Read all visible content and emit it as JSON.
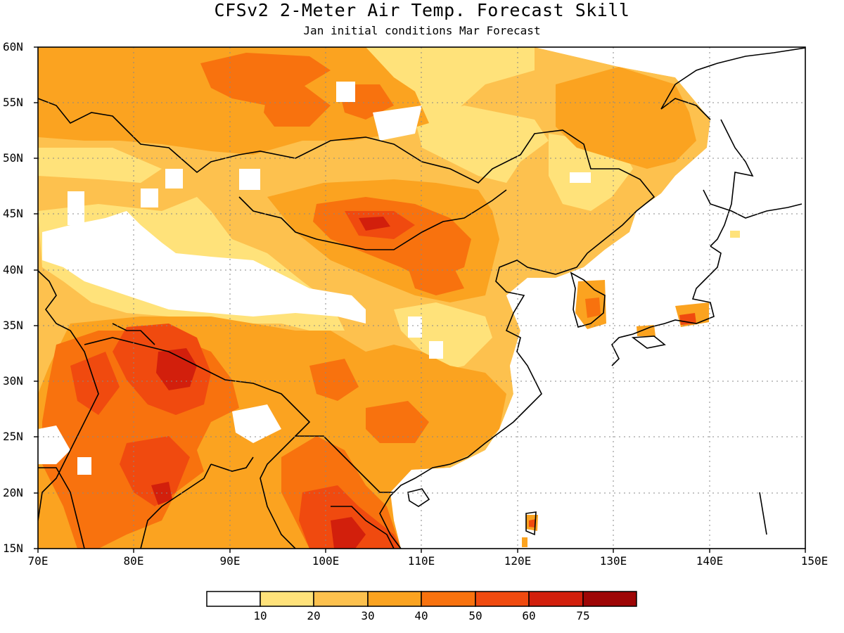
{
  "header": {
    "title": "CFSv2 2-Meter Air Temp. Forecast Skill",
    "subtitle": "Jan initial conditions  Mar Forecast"
  },
  "map": {
    "projection": "cylindrical equidistant",
    "lon_range": [
      70,
      150
    ],
    "lat_range": [
      15,
      60
    ],
    "lat_labels": [
      "60N",
      "55N",
      "50N",
      "45N",
      "40N",
      "35N",
      "30N",
      "25N",
      "20N",
      "15N"
    ],
    "lon_labels": [
      "70E",
      "80E",
      "90E",
      "100E",
      "110E",
      "120E",
      "130E",
      "140E",
      "150E"
    ],
    "gridlines": "dotted, every 10° lon and 5° lat",
    "coastline_color": "#000000"
  },
  "colorbar": {
    "bins": [
      {
        "color": "#ffffff"
      },
      {
        "color": "#ffe27a"
      },
      {
        "color": "#fdc14e"
      },
      {
        "color": "#fba320"
      },
      {
        "color": "#f8720e"
      },
      {
        "color": "#f04a0f"
      },
      {
        "color": "#d21f0c"
      },
      {
        "color": "#9e0606"
      }
    ],
    "labels": [
      "10",
      "20",
      "30",
      "40",
      "50",
      "60",
      "75"
    ]
  },
  "chart_data": {
    "type": "heatmap",
    "title": "CFSv2 2-Meter Air Temp. Forecast Skill",
    "subtitle": "Jan initial conditions  Mar Forecast",
    "xlabel": "",
    "ylabel": "",
    "xlim": [
      70,
      150
    ],
    "ylim": [
      15,
      60
    ],
    "contour_levels": [
      10,
      20,
      30,
      40,
      50,
      60,
      75
    ],
    "regions": [
      {
        "lon": [
          70,
          110
        ],
        "lat": [
          52,
          60
        ],
        "level_range": [
          30,
          40
        ]
      },
      {
        "lon": [
          88,
          100
        ],
        "lat": [
          53,
          58
        ],
        "level_range": [
          40,
          50
        ]
      },
      {
        "lon": [
          98,
          110
        ],
        "lat": [
          42,
          46
        ],
        "level_range": [
          40,
          50
        ]
      },
      {
        "lon": [
          72,
          95
        ],
        "lat": [
          37,
          44
        ],
        "level_range": [
          0,
          10
        ]
      },
      {
        "lon": [
          115,
          135
        ],
        "lat": [
          47,
          56
        ],
        "level_range": [
          20,
          30
        ]
      },
      {
        "lon": [
          78,
          92
        ],
        "lat": [
          26,
          34
        ],
        "level_range": [
          50,
          60
        ]
      },
      {
        "lon": [
          84,
          86
        ],
        "lat": [
          30,
          33
        ],
        "level_range": [
          60,
          75
        ]
      },
      {
        "lon": [
          100,
          106
        ],
        "lat": [
          15,
          20
        ],
        "level_range": [
          50,
          60
        ]
      },
      {
        "lon": [
          105,
          120
        ],
        "lat": [
          22,
          34
        ],
        "level_range": [
          30,
          40
        ]
      }
    ]
  }
}
